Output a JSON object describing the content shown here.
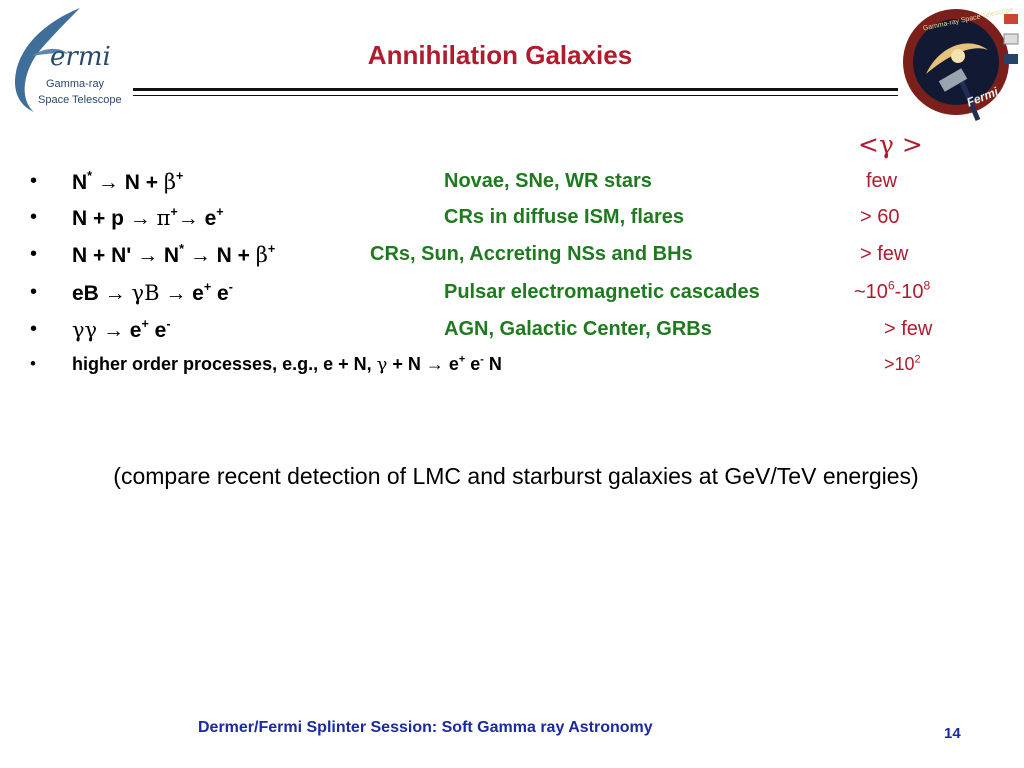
{
  "title": "Annihilation Galaxies",
  "logo_left": {
    "word": "ermi",
    "line1": "Gamma-ray",
    "line2": "Space Telescope"
  },
  "logo_right": {
    "text": "Fermi",
    "ring": "Gamma-ray Space Telescope"
  },
  "gamma_header": "<γ >",
  "rows": [
    {
      "bullet": "•",
      "a": "N",
      "b": "*",
      "c": " → N + ",
      "d": "β",
      "e": "+",
      "source": "Novae, SNe, WR stars",
      "value": "few"
    },
    {
      "bullet": "•",
      "a": "N + p → ",
      "b": "π",
      "c": "+",
      "d": "→ e",
      "e": "+",
      "source": "CRs in diffuse ISM, flares",
      "value": "> 60"
    },
    {
      "bullet": "•",
      "a": "N + N' → N",
      "b": "*",
      "c": " → N + ",
      "d": "β",
      "e": "+",
      "source": "CRs, Sun, Accreting NSs and BHs",
      "value": "> few"
    },
    {
      "bullet": "•",
      "a": "eB  → ",
      "b": "γB",
      "c": " → e",
      "d": "+",
      "e": " e",
      "f": "-",
      "source": "Pulsar electromagnetic cascades",
      "value_a": "~10",
      "value_b": "6",
      "value_c": "-10",
      "value_d": "8"
    },
    {
      "bullet": "•",
      "a": " ",
      "b": "γγ",
      "c": "  → e",
      "d": "+",
      "e": " e",
      "f": "-",
      "source": "AGN, Galactic Center, GRBs",
      "value": "> few"
    },
    {
      "bullet": "•",
      "a": "higher order processes, e.g., e + N, ",
      "b": "γ",
      "c": " + N → e",
      "d": "+",
      "e": " e",
      "f": "-",
      "g": " N",
      "value_a": ">10",
      "value_b": "2"
    }
  ],
  "note": "(compare recent detection of LMC and starburst galaxies at GeV/TeV energies)",
  "footer": "Dermer/Fermi Splinter Session: Soft Gamma ray Astronomy",
  "page_number": "14",
  "colors": {
    "title": "#b01c2e",
    "source": "#1f7a1f",
    "value": "#b01c2e",
    "footer": "#1a2aa0"
  }
}
